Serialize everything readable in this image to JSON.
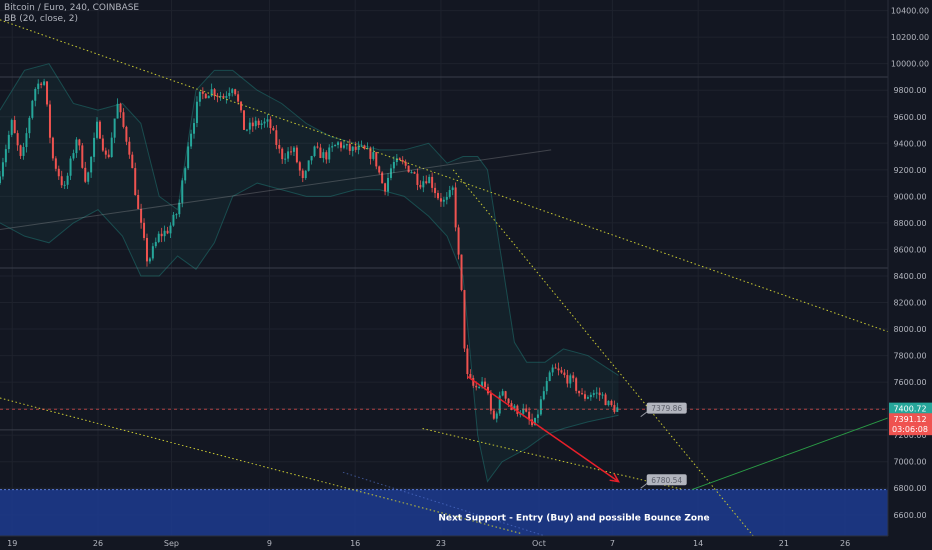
{
  "header": {
    "symbol_line": "Bitcoin / Euro, 240, COINBASE",
    "indicator_line": "BB (20, close, 2)"
  },
  "colors": {
    "background": "#131722",
    "grid": "#1e222d",
    "up_candle": "#26a69a",
    "down_candle": "#ef5350",
    "trendline": "#c8c832",
    "support_zone": "#1d3b8f",
    "arrow": "#e8202a",
    "green_line": "#2a9a45"
  },
  "chart_data": {
    "type": "candlestick",
    "title": "Bitcoin / Euro, 240, COINBASE",
    "ylim": [
      6440,
      10480
    ],
    "y_ticks": [
      6600,
      6800,
      7000,
      7200,
      7400,
      7600,
      7800,
      8000,
      8200,
      8400,
      8600,
      8800,
      9000,
      9200,
      9400,
      9600,
      9800,
      10000,
      10200,
      10400
    ],
    "y_tick_labels": [
      "6600.00",
      "6800.00",
      "7000.00",
      "7200.00",
      "7400.00",
      "7600.00",
      "7800.00",
      "8000.00",
      "8200.00",
      "8400.00",
      "8600.00",
      "8800.00",
      "9000.00",
      "9200.00",
      "9400.00",
      "9600.00",
      "9800.00",
      "10000.00",
      "10200.00",
      "10400.00"
    ],
    "x_ticks": [
      {
        "label": "19",
        "day": 19
      },
      {
        "label": "26",
        "day": 26
      },
      {
        "label": "Sep",
        "day": 32
      },
      {
        "label": "9",
        "day": 40
      },
      {
        "label": "16",
        "day": 47
      },
      {
        "label": "23",
        "day": 54
      },
      {
        "label": "Oct",
        "day": 62
      },
      {
        "label": "7",
        "day": 68
      },
      {
        "label": "14",
        "day": 75
      },
      {
        "label": "21",
        "day": 82
      },
      {
        "label": "26",
        "day": 87
      }
    ],
    "x_range": [
      18.0,
      90.5
    ],
    "price_path": [
      [
        18.0,
        9100
      ],
      [
        19.2,
        9550
      ],
      [
        20.0,
        9250
      ],
      [
        21.0,
        9800
      ],
      [
        21.8,
        9900
      ],
      [
        22.5,
        9300
      ],
      [
        23.5,
        9050
      ],
      [
        24.5,
        9450
      ],
      [
        25.3,
        9100
      ],
      [
        26.2,
        9550
      ],
      [
        27.0,
        9250
      ],
      [
        27.8,
        9700
      ],
      [
        28.8,
        9350
      ],
      [
        29.5,
        8900
      ],
      [
        30.3,
        8500
      ],
      [
        31.2,
        8700
      ],
      [
        32.0,
        8750
      ],
      [
        32.8,
        8900
      ],
      [
        33.6,
        9400
      ],
      [
        34.5,
        9750
      ],
      [
        35.5,
        9800
      ],
      [
        36.5,
        9750
      ],
      [
        37.3,
        9850
      ],
      [
        38.2,
        9500
      ],
      [
        39.2,
        9550
      ],
      [
        40.2,
        9550
      ],
      [
        41.2,
        9300
      ],
      [
        42.2,
        9350
      ],
      [
        43.0,
        9100
      ],
      [
        43.8,
        9350
      ],
      [
        44.8,
        9300
      ],
      [
        45.8,
        9400
      ],
      [
        46.8,
        9350
      ],
      [
        47.8,
        9350
      ],
      [
        48.8,
        9300
      ],
      [
        49.6,
        9050
      ],
      [
        50.3,
        9250
      ],
      [
        51.0,
        9250
      ],
      [
        51.8,
        9200
      ],
      [
        52.5,
        9100
      ],
      [
        53.2,
        9150
      ],
      [
        54.0,
        9000
      ],
      [
        54.6,
        8950
      ],
      [
        55.2,
        9050
      ],
      [
        55.9,
        8300
      ],
      [
        56.3,
        7650
      ],
      [
        57.0,
        7550
      ],
      [
        57.8,
        7600
      ],
      [
        58.5,
        7300
      ],
      [
        59.3,
        7550
      ],
      [
        60.0,
        7400
      ],
      [
        61.0,
        7380
      ],
      [
        61.8,
        7250
      ],
      [
        62.6,
        7520
      ],
      [
        63.4,
        7700
      ],
      [
        64.2,
        7650
      ],
      [
        65.0,
        7600
      ],
      [
        65.8,
        7480
      ],
      [
        66.6,
        7520
      ],
      [
        67.4,
        7500
      ],
      [
        68.0,
        7420
      ],
      [
        68.5,
        7400
      ]
    ],
    "bollinger_bands": {
      "upper": [
        [
          18.0,
          9650
        ],
        [
          20.0,
          9950
        ],
        [
          22.0,
          10000
        ],
        [
          24.0,
          9700
        ],
        [
          26.0,
          9650
        ],
        [
          28.0,
          9700
        ],
        [
          29.5,
          9550
        ],
        [
          31.0,
          9000
        ],
        [
          32.5,
          8900
        ],
        [
          34.0,
          9800
        ],
        [
          35.5,
          9950
        ],
        [
          37.0,
          9950
        ],
        [
          39.0,
          9800
        ],
        [
          41.0,
          9700
        ],
        [
          43.0,
          9550
        ],
        [
          45.0,
          9450
        ],
        [
          47.0,
          9400
        ],
        [
          49.0,
          9350
        ],
        [
          51.0,
          9350
        ],
        [
          53.0,
          9400
        ],
        [
          54.5,
          9250
        ],
        [
          55.8,
          9300
        ],
        [
          57.0,
          9300
        ],
        [
          57.8,
          9200
        ],
        [
          59.0,
          8500
        ],
        [
          60.0,
          7900
        ],
        [
          61.0,
          7750
        ],
        [
          62.5,
          7750
        ],
        [
          64.0,
          7850
        ],
        [
          66.0,
          7800
        ],
        [
          68.5,
          7650
        ]
      ],
      "lower": [
        [
          18.0,
          8800
        ],
        [
          20.0,
          8700
        ],
        [
          22.0,
          8650
        ],
        [
          24.0,
          8800
        ],
        [
          26.0,
          8900
        ],
        [
          28.0,
          8700
        ],
        [
          29.5,
          8400
        ],
        [
          31.0,
          8400
        ],
        [
          32.5,
          8550
        ],
        [
          34.0,
          8450
        ],
        [
          35.5,
          8650
        ],
        [
          37.0,
          9000
        ],
        [
          39.0,
          9100
        ],
        [
          41.0,
          9050
        ],
        [
          43.0,
          9000
        ],
        [
          45.0,
          9000
        ],
        [
          47.0,
          9050
        ],
        [
          49.0,
          9050
        ],
        [
          51.0,
          9000
        ],
        [
          53.0,
          8850
        ],
        [
          54.5,
          8700
        ],
        [
          55.8,
          8400
        ],
        [
          57.0,
          7200
        ],
        [
          57.8,
          6850
        ],
        [
          59.0,
          7000
        ],
        [
          60.0,
          7050
        ],
        [
          61.0,
          7100
        ],
        [
          62.5,
          7200
        ],
        [
          64.0,
          7250
        ],
        [
          66.0,
          7300
        ],
        [
          68.5,
          7350
        ]
      ]
    },
    "horizontal_levels": [
      9900,
      8460,
      7240
    ],
    "trendlines": [
      {
        "style": "dotted",
        "from": [
          18.0,
          10330
        ],
        "to": [
          90.5,
          7980
        ]
      },
      {
        "style": "dotted",
        "from": [
          18.0,
          7480
        ],
        "to": [
          60.5,
          6460
        ]
      },
      {
        "style": "dotted",
        "from": [
          52.5,
          7250
        ],
        "to": [
          73.8,
          6790
        ]
      },
      {
        "style": "dotted",
        "from": [
          55.0,
          9200
        ],
        "to": [
          79.5,
          6440
        ]
      },
      {
        "style": "solid_thin",
        "from": [
          18.0,
          8750
        ],
        "to": [
          63.0,
          9350
        ]
      }
    ],
    "green_line": {
      "from": [
        74.5,
        6790
      ],
      "to": [
        90.5,
        7330
      ]
    },
    "arrow": {
      "from": [
        56.2,
        7640
      ],
      "to": [
        68.5,
        6850
      ]
    },
    "support_zone": {
      "y_top": 6790,
      "y_bottom": 6440,
      "label": "Next Support - Entry (Buy) and possible Bounce Zone"
    },
    "annotations": [
      {
        "text": "7379.86",
        "x": 70.8,
        "y": 7400
      },
      {
        "text": "6780.54",
        "x": 70.8,
        "y": 6860
      }
    ],
    "price_labels": [
      {
        "text": "7400.72",
        "y": 7400,
        "color": "#26a69a"
      },
      {
        "text": "7391.12",
        "y": 7320,
        "color": "#ef5350"
      },
      {
        "text": "03:06:08",
        "y": 7245,
        "color": "#ef5350"
      }
    ]
  }
}
